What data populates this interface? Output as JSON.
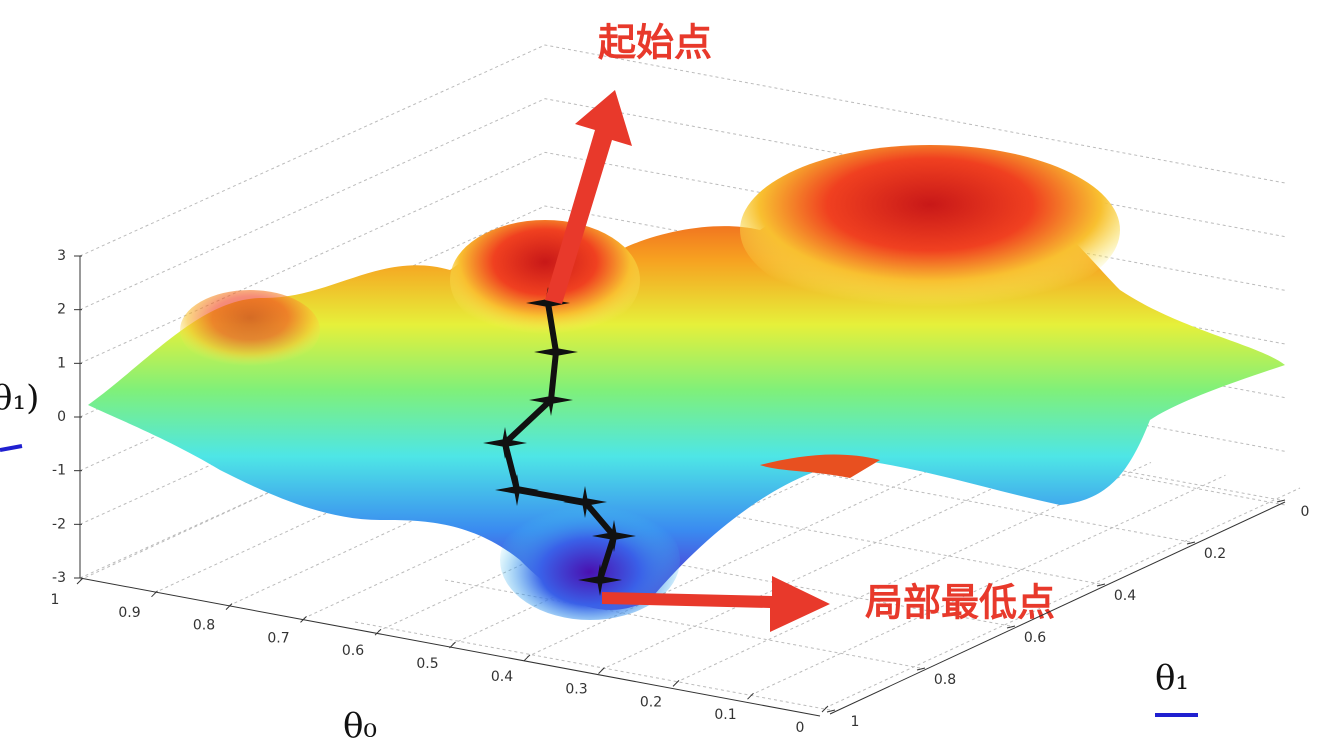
{
  "chart_data": {
    "type": "surface3d",
    "annotations": [
      "起始点",
      "局部最低点"
    ],
    "xlabel": "θ₀",
    "ylabel": "θ₁",
    "zlabel": "θ₁)",
    "xticks": [
      0,
      0.1,
      0.2,
      0.3,
      0.4,
      0.5,
      0.6,
      0.7,
      0.8,
      0.9,
      1
    ],
    "yticks": [
      0,
      0.2,
      0.4,
      0.6,
      0.8,
      1
    ],
    "zticks": [
      -3,
      -2,
      -1,
      0,
      1,
      2,
      3
    ],
    "xlim": [
      0,
      1
    ],
    "ylim": [
      0,
      1
    ],
    "zlim": [
      -3,
      3
    ],
    "grid": true
  }
}
